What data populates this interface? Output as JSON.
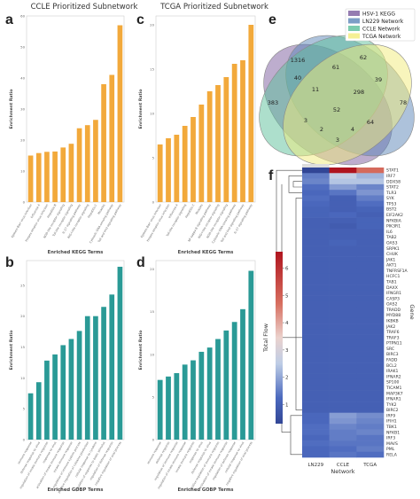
{
  "panels": {
    "a": {
      "letter": "a",
      "title": "CCLE Prioritized Subnetwork",
      "xlabel": "Enriched KEGG Terms",
      "ylabel": "Enrichment Ratio"
    },
    "c": {
      "letter": "c",
      "title": "TCGA Prioritized Subnetwork",
      "xlabel": "Enriched KEGG Terms",
      "ylabel": "Enrichment Ratio"
    },
    "b": {
      "letter": "b",
      "title": "",
      "xlabel": "Enriched GOBP Terms",
      "ylabel": "Enrichment Ratio"
    },
    "d": {
      "letter": "d",
      "title": "",
      "xlabel": "Enriched GOBP Terms",
      "ylabel": "Enrichment Ratio"
    },
    "e": {
      "letter": "e"
    },
    "f": {
      "letter": "f"
    }
  },
  "chart_data": [
    {
      "type": "bar",
      "panel": "a",
      "color": "#f2a93b",
      "title": "CCLE Prioritized Subnetwork",
      "xlabel": "Enriched KEGG Terms",
      "ylabel": "Enrichment Ratio",
      "categories": [
        "Epstein-Barr virus infection",
        "Influenza A",
        "Herpes simplex virus infection",
        "Hepatitis B",
        "NOD-like receptor signaling",
        "Toll-like receptor signaling",
        "IL-17 signaling pathway",
        "RIG-I-like receptor signaling",
        "Hepatitis C",
        "Measles",
        "Cytosolic DNA-sensing pathway",
        "Toll and Imd signaling pathway"
      ],
      "values": [
        15.0,
        15.8,
        16.2,
        16.3,
        17.6,
        18.8,
        23.8,
        24.8,
        26.5,
        38.0,
        41.0,
        57.0
      ],
      "ylim": [
        0,
        60
      ]
    },
    {
      "type": "bar",
      "panel": "c",
      "color": "#f2a93b",
      "title": "TCGA Prioritized Subnetwork",
      "xlabel": "Enriched KEGG Terms",
      "ylabel": "Enrichment Ratio",
      "categories": [
        "Epstein-Barr virus infection",
        "Herpes simplex virus infection",
        "Influenza A",
        "Toll-like receptor signaling",
        "Hepatitis C",
        "Measles",
        "NF-kappa B signaling pathway",
        "RIG-I-like receptor signaling",
        "NOD-like receptor signaling",
        "Cytosolic DNA-sensing pathway",
        "Toll and Imd signaling pathway",
        "IL-17 signaling pathway"
      ],
      "values": [
        6.5,
        7.2,
        7.6,
        8.6,
        9.6,
        11.0,
        12.5,
        13.2,
        14.1,
        15.6,
        16.0,
        20.0
      ],
      "ylim": [
        0,
        21
      ]
    },
    {
      "type": "bar",
      "panel": "b",
      "color": "#2a9a96",
      "xlabel": "Enriched GOBP Terms",
      "ylabel": "Enrichment Ratio",
      "categories": [
        "immune response",
        "defense response to virus",
        "regulation of innate immune response",
        "response to virus",
        "activation of innate immune response",
        "innate immune response",
        "regulation of immune system process",
        "positive regulation of cytokine production",
        "cellular response to cytokine",
        "regulation of response to biotic stimulus",
        "regulation of defense response",
        "negative regulation of viral process"
      ],
      "values": [
        7.5,
        9.3,
        12.8,
        13.8,
        15.3,
        16.3,
        17.6,
        20.0,
        20.0,
        21.5,
        23.5,
        28.0
      ],
      "ylim": [
        0,
        29
      ]
    },
    {
      "type": "bar",
      "panel": "d",
      "color": "#2a9a96",
      "xlabel": "Enriched GOBP Terms",
      "ylabel": "Enrichment Ratio",
      "categories": [
        "immune response",
        "defense response",
        "regulation of immune response",
        "regulation of innate immune response",
        "innate immune response",
        "response to virus",
        "defense response to virus",
        "positive regulation of immune response",
        "activation of innate immune response",
        "regulation of defense response",
        "cellular response to virus",
        "negative regulation of viral process"
      ],
      "values": [
        7.0,
        7.4,
        7.8,
        8.8,
        9.3,
        10.3,
        10.8,
        11.8,
        12.8,
        13.8,
        15.3,
        19.8
      ],
      "ylim": [
        0,
        21
      ]
    },
    {
      "type": "venn",
      "panel": "e",
      "sets": [
        {
          "name": "HSV-1 KEGG",
          "color": "#7b5b9e"
        },
        {
          "name": "LN229 Network",
          "color": "#5b86b8"
        },
        {
          "name": "CCLE Network",
          "color": "#5bbf9a"
        },
        {
          "name": "TCGA Network",
          "color": "#f2ec7a"
        }
      ],
      "region_counts": [
        "1316",
        "62",
        "40",
        "61",
        "39",
        "383",
        "11",
        "298",
        "78",
        "52",
        "3",
        "2",
        "4",
        "64",
        "3"
      ]
    },
    {
      "type": "heatmap",
      "panel": "f",
      "xlabel": "Network",
      "ylabel": "Gene",
      "colorbar_label": "Total Flow",
      "columns": [
        "LN229",
        "CCLE",
        "TCGA"
      ],
      "colorbar_ticks": [
        "1",
        "2",
        "3",
        "4",
        "5",
        "6"
      ],
      "vmin": 0.3,
      "vmax": 6.6,
      "genes": [
        "STAT1",
        "IRF7",
        "DDX58",
        "STAT2",
        "TLR3",
        "SYK",
        "TP53",
        "BST2",
        "EIF2AK2",
        "NFKBIA",
        "PIK3R1",
        "IL6",
        "TAB2",
        "OAS3",
        "SRPK1",
        "CHUK",
        "JAK1",
        "AKT1",
        "TNFRSF1A",
        "HCFC1",
        "TAB1",
        "DAXX",
        "IFNGR1",
        "CASP3",
        "OAS2",
        "TRADD",
        "MYD88",
        "IKBKB",
        "JAK2",
        "TRAF6",
        "TRAF3",
        "PTPN11",
        "SRC",
        "BIRC3",
        "FADD",
        "BCL2",
        "IRAK1",
        "IFNAR2",
        "SP100",
        "TICAM1",
        "MAP3K7",
        "IFNAR1",
        "TYK2",
        "BIRC2",
        "IRF9",
        "IFIH1",
        "TBK1",
        "NFKB1",
        "IRF3",
        "MAVS",
        "PML",
        "RELA"
      ],
      "values": [
        [
          0.3,
          6.6,
          4.8
        ],
        [
          1.5,
          2.6,
          2.2
        ],
        [
          1.6,
          2.4,
          2.4
        ],
        [
          1.3,
          1.9,
          1.6
        ],
        [
          1.2,
          1.4,
          1.8
        ],
        [
          1.3,
          1.0,
          1.5
        ],
        [
          1.2,
          1.0,
          1.3
        ],
        [
          1.1,
          1.0,
          1.1
        ],
        [
          1.1,
          1.2,
          1.0
        ],
        [
          1.0,
          1.0,
          1.1
        ],
        [
          1.0,
          0.9,
          1.1
        ],
        [
          1.0,
          1.0,
          1.0
        ],
        [
          1.0,
          1.0,
          1.0
        ],
        [
          1.0,
          1.1,
          1.0
        ],
        [
          1.0,
          1.0,
          1.0
        ],
        [
          1.0,
          1.0,
          1.0
        ],
        [
          1.0,
          1.0,
          1.0
        ],
        [
          1.0,
          1.0,
          1.0
        ],
        [
          1.0,
          1.0,
          1.0
        ],
        [
          1.0,
          1.0,
          1.0
        ],
        [
          1.0,
          1.0,
          1.0
        ],
        [
          1.0,
          1.0,
          1.0
        ],
        [
          1.0,
          1.0,
          1.0
        ],
        [
          1.0,
          1.0,
          1.0
        ],
        [
          1.0,
          1.0,
          1.0
        ],
        [
          1.0,
          1.0,
          1.0
        ],
        [
          1.0,
          1.0,
          1.0
        ],
        [
          1.0,
          1.0,
          1.0
        ],
        [
          1.0,
          1.0,
          1.0
        ],
        [
          1.0,
          1.0,
          1.0
        ],
        [
          1.0,
          1.0,
          1.0
        ],
        [
          1.0,
          1.0,
          1.0
        ],
        [
          1.0,
          1.0,
          1.0
        ],
        [
          1.0,
          1.0,
          1.0
        ],
        [
          1.0,
          1.0,
          1.0
        ],
        [
          1.0,
          1.0,
          1.0
        ],
        [
          1.0,
          1.0,
          1.0
        ],
        [
          1.0,
          1.0,
          1.0
        ],
        [
          1.0,
          1.0,
          1.0
        ],
        [
          1.0,
          1.0,
          1.0
        ],
        [
          1.0,
          1.0,
          1.0
        ],
        [
          1.0,
          1.0,
          1.0
        ],
        [
          1.0,
          1.0,
          1.0
        ],
        [
          1.0,
          1.0,
          1.0
        ],
        [
          1.2,
          1.9,
          1.7
        ],
        [
          1.2,
          1.8,
          1.6
        ],
        [
          1.3,
          1.6,
          1.5
        ],
        [
          1.3,
          1.5,
          1.6
        ],
        [
          1.2,
          1.5,
          1.4
        ],
        [
          1.3,
          1.4,
          1.4
        ],
        [
          1.2,
          1.3,
          1.5
        ],
        [
          1.2,
          1.4,
          1.3
        ]
      ]
    }
  ]
}
